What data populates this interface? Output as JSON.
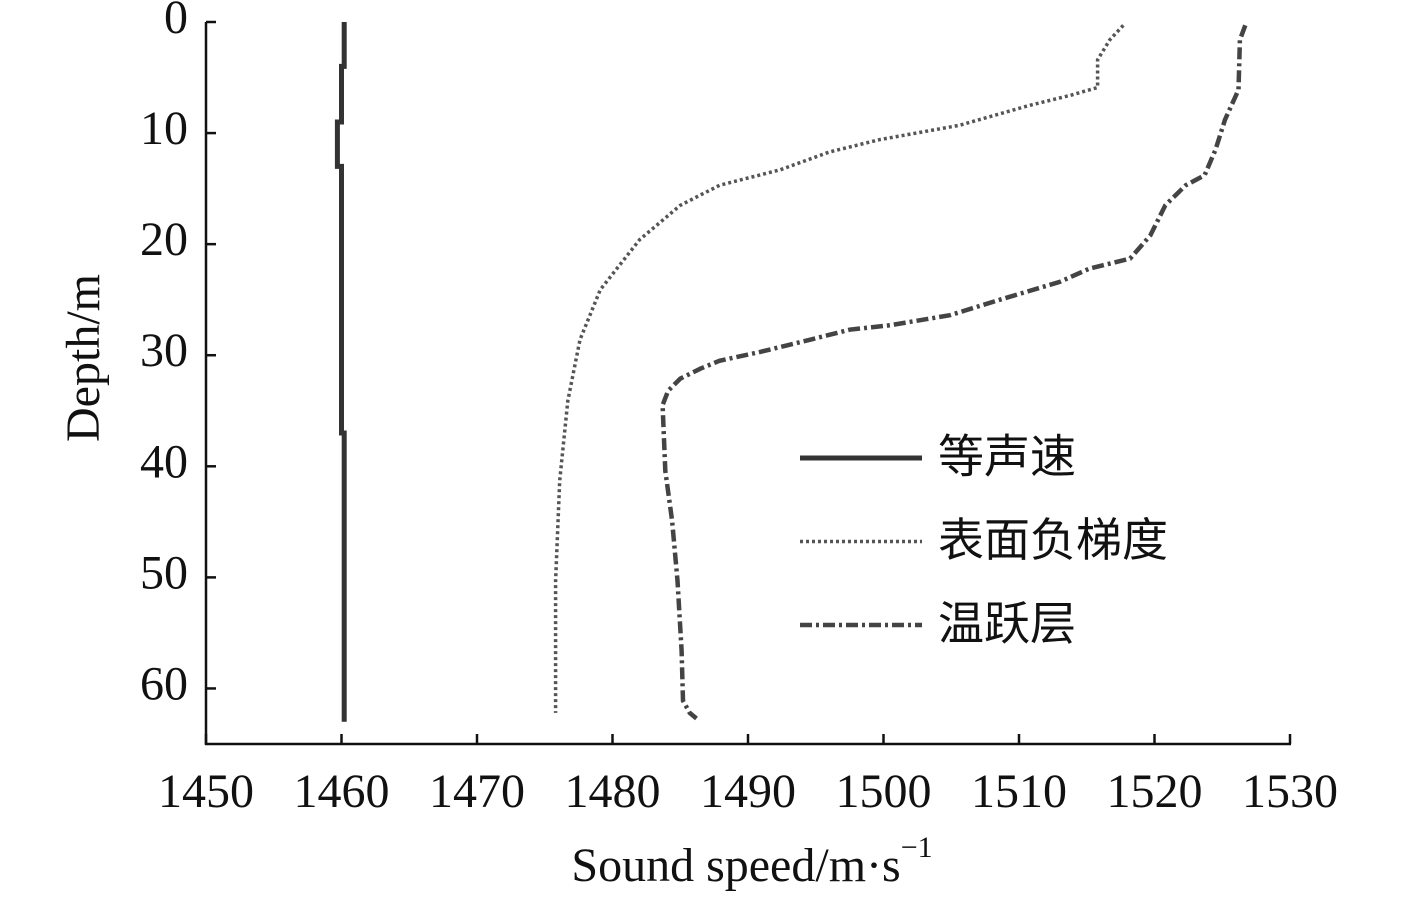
{
  "chart_data": {
    "type": "line",
    "xlabel": "Sound speed/m·s",
    "xlabel_superscript": "−1",
    "ylabel": "Depth/m",
    "xlim": [
      1450,
      1530
    ],
    "xticks": [
      1450,
      1460,
      1470,
      1480,
      1490,
      1500,
      1510,
      1520,
      1530
    ],
    "ylim": [
      0,
      65
    ],
    "yticks": [
      0,
      10,
      20,
      30,
      40,
      50,
      60
    ],
    "y_inverted": true,
    "legend": "center right",
    "series": [
      {
        "name": "等声速",
        "color": "#333333",
        "style": "solid",
        "x": [
          1460.2,
          1460.2,
          1460,
          1460,
          1459.7,
          1459.7,
          1460,
          1460,
          1460.2,
          1460.2
        ],
        "y": [
          0,
          4,
          4,
          9,
          9,
          13,
          13,
          37,
          37,
          63
        ]
      },
      {
        "name": "表面负梯度",
        "color": "#555555",
        "style": "dotted",
        "x": [
          1517.7,
          1516.7,
          1515.8,
          1515.8,
          1513.8,
          1510.8,
          1505.6,
          1499.7,
          1496,
          1492.4,
          1487.9,
          1485,
          1482,
          1479.1,
          1477.6,
          1476.7,
          1476.1,
          1475.8,
          1475.8
        ],
        "y": [
          0.3,
          1.6,
          3.4,
          5.9,
          6.6,
          7.5,
          9.3,
          10.6,
          11.7,
          13.3,
          14.7,
          16.5,
          19.6,
          24.1,
          28.6,
          34.1,
          41.3,
          50.3,
          62.2
        ]
      },
      {
        "name": "温跃层",
        "color": "#444444",
        "style": "dashdot",
        "x": [
          1526.7,
          1526.3,
          1526.2,
          1525.2,
          1524.5,
          1523.7,
          1522.3,
          1520.8,
          1519.7,
          1518.2,
          1515.2,
          1513,
          1508.6,
          1504.9,
          1500.5,
          1497.5,
          1494.6,
          1490.9,
          1487.9,
          1486.5,
          1485,
          1484.1,
          1483.7,
          1483.9,
          1484.4,
          1484.8,
          1485.1,
          1485.2,
          1485.7,
          1486.2
        ],
        "y": [
          0.3,
          1.6,
          6.1,
          8.8,
          11.5,
          13.8,
          14.7,
          16.5,
          19.2,
          21.3,
          22.2,
          23.4,
          25,
          26.4,
          27.3,
          27.7,
          28.6,
          29.7,
          30.5,
          31.2,
          32.1,
          33.2,
          34.5,
          40.4,
          44.9,
          50.3,
          56.6,
          61.1,
          62.2,
          62.7
        ]
      }
    ]
  }
}
